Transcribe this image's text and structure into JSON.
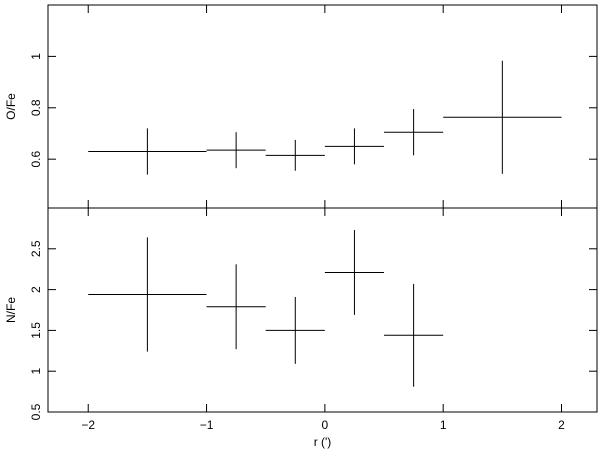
{
  "chart_data": [
    {
      "type": "errorbar",
      "ylabel": "O/Fe",
      "x": [
        -1.5,
        -0.75,
        -0.25,
        0.25,
        0.75,
        1.5
      ],
      "xerr": [
        0.5,
        0.25,
        0.25,
        0.25,
        0.25,
        0.5
      ],
      "values": [
        0.63,
        0.635,
        0.615,
        0.65,
        0.705,
        0.763
      ],
      "yerr": [
        0.09,
        0.07,
        0.06,
        0.07,
        0.09,
        0.22
      ],
      "ylim": [
        0.41,
        1.2
      ],
      "yticks": [
        0.6,
        0.8,
        1
      ]
    },
    {
      "type": "errorbar",
      "ylabel": "N/Fe",
      "xlabel": "r (')",
      "x": [
        -1.5,
        -0.75,
        -0.25,
        0.25,
        0.75
      ],
      "xerr": [
        0.5,
        0.25,
        0.25,
        0.25,
        0.25
      ],
      "values": [
        1.94,
        1.79,
        1.5,
        2.21,
        1.44
      ],
      "yerr": [
        0.7,
        0.52,
        0.41,
        0.52,
        0.63
      ],
      "ylim": [
        0.5,
        3.0
      ],
      "yticks": [
        0.5,
        1,
        1.5,
        2,
        2.5
      ],
      "xlim": [
        -2.34,
        2.3
      ],
      "xticks": [
        {
          "value": -2,
          "label": "−2"
        },
        {
          "value": -1,
          "label": "−1"
        },
        0,
        1,
        2
      ]
    }
  ]
}
